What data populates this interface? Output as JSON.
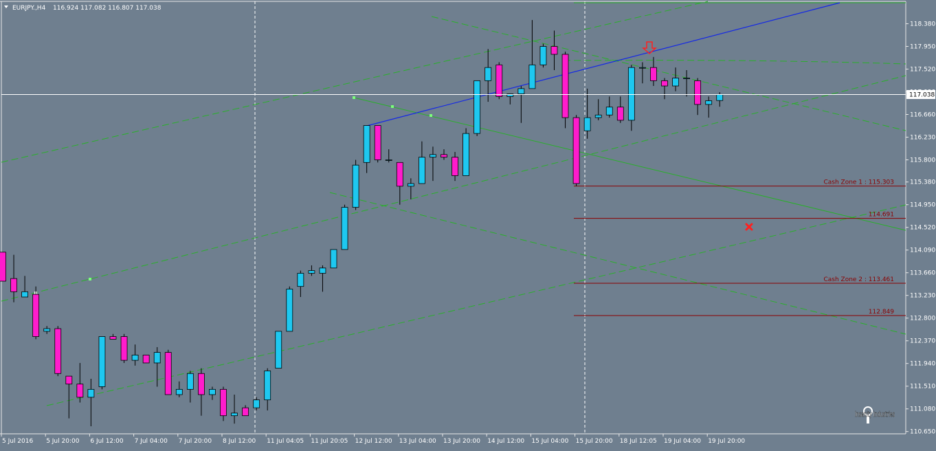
{
  "header": {
    "symbol": "EURJPY.,H4",
    "ohlc": "116.924 117.082 116.807 117.038"
  },
  "colors": {
    "background": "#6f7f8f",
    "bull_candle": "#1ec8f0",
    "bear_candle": "#ff1ccc",
    "channel_lines": "#29b029",
    "trend_line": "#1428e6",
    "zone_lines": "#8b0000",
    "arrow": "#ff2020"
  },
  "watermark": "Insanity Industries",
  "chart_data": {
    "type": "candlestick",
    "timeframe": "H4",
    "ylim": [
      110.57,
      118.72
    ],
    "price_axis_labels": [
      "118.380",
      "117.950",
      "117.520",
      "117.090",
      "116.660",
      "116.230",
      "115.800",
      "115.380",
      "114.950",
      "114.520",
      "114.090",
      "113.660",
      "113.230",
      "112.800",
      "112.370",
      "111.940",
      "111.510",
      "111.080",
      "110.650"
    ],
    "time_axis_labels": [
      "5 Jul 2016",
      "5 Jul 20:00",
      "6 Jul 12:00",
      "7 Jul 04:00",
      "7 Jul 20:00",
      "8 Jul 12:00",
      "11 Jul 04:05",
      "11 Jul 20:05",
      "12 Jul 12:00",
      "13 Jul 04:00",
      "13 Jul 20:00",
      "14 Jul 12:00",
      "15 Jul 04:00",
      "15 Jul 20:00",
      "18 Jul 12:05",
      "19 Jul 04:00",
      "19 Jul 20:00"
    ],
    "current_price": "117.038",
    "candles": [
      {
        "o": 114.05,
        "h": 114.05,
        "l": 113.5,
        "c": 113.5
      },
      {
        "o": 113.55,
        "h": 114.0,
        "l": 113.1,
        "c": 113.3
      },
      {
        "o": 113.2,
        "h": 113.6,
        "l": 113.2,
        "c": 113.3
      },
      {
        "o": 113.25,
        "h": 113.4,
        "l": 112.4,
        "c": 112.45
      },
      {
        "o": 112.55,
        "h": 112.65,
        "l": 112.5,
        "c": 112.6
      },
      {
        "o": 112.6,
        "h": 112.65,
        "l": 111.7,
        "c": 111.75
      },
      {
        "o": 111.7,
        "h": 111.7,
        "l": 110.9,
        "c": 111.55
      },
      {
        "o": 111.55,
        "h": 111.95,
        "l": 111.2,
        "c": 111.3
      },
      {
        "o": 111.3,
        "h": 111.65,
        "l": 110.75,
        "c": 111.45
      },
      {
        "o": 111.5,
        "h": 112.45,
        "l": 111.45,
        "c": 112.45
      },
      {
        "o": 112.45,
        "h": 112.5,
        "l": 112.4,
        "c": 112.4
      },
      {
        "o": 112.45,
        "h": 112.5,
        "l": 111.95,
        "c": 112.0
      },
      {
        "o": 112.0,
        "h": 112.3,
        "l": 111.9,
        "c": 112.1
      },
      {
        "o": 112.1,
        "h": 112.05,
        "l": 111.95,
        "c": 111.95
      },
      {
        "o": 111.95,
        "h": 112.25,
        "l": 111.5,
        "c": 112.15
      },
      {
        "o": 112.15,
        "h": 112.2,
        "l": 111.35,
        "c": 111.35
      },
      {
        "o": 111.35,
        "h": 111.6,
        "l": 111.3,
        "c": 111.45
      },
      {
        "o": 111.45,
        "h": 111.8,
        "l": 111.2,
        "c": 111.75
      },
      {
        "o": 111.75,
        "h": 111.85,
        "l": 110.95,
        "c": 111.35
      },
      {
        "o": 111.35,
        "h": 111.5,
        "l": 111.25,
        "c": 111.45
      },
      {
        "o": 111.45,
        "h": 111.5,
        "l": 110.85,
        "c": 110.95
      },
      {
        "o": 110.95,
        "h": 111.35,
        "l": 110.8,
        "c": 111.0
      },
      {
        "o": 111.1,
        "h": 111.15,
        "l": 110.95,
        "c": 110.95
      },
      {
        "o": 111.1,
        "h": 111.3,
        "l": 111.05,
        "c": 111.25
      },
      {
        "o": 111.25,
        "h": 111.85,
        "l": 111.05,
        "c": 111.8
      },
      {
        "o": 111.85,
        "h": 112.55,
        "l": 111.85,
        "c": 112.55
      },
      {
        "o": 112.55,
        "h": 113.4,
        "l": 112.55,
        "c": 113.35
      },
      {
        "o": 113.4,
        "h": 113.7,
        "l": 113.2,
        "c": 113.65
      },
      {
        "o": 113.65,
        "h": 113.8,
        "l": 113.6,
        "c": 113.7
      },
      {
        "o": 113.65,
        "h": 113.8,
        "l": 113.3,
        "c": 113.75
      },
      {
        "o": 113.75,
        "h": 114.1,
        "l": 113.75,
        "c": 114.1
      },
      {
        "o": 114.1,
        "h": 114.95,
        "l": 114.1,
        "c": 114.9
      },
      {
        "o": 114.9,
        "h": 115.8,
        "l": 114.85,
        "c": 115.7
      },
      {
        "o": 115.75,
        "h": 116.45,
        "l": 115.55,
        "c": 116.45
      },
      {
        "o": 116.45,
        "h": 116.45,
        "l": 115.75,
        "c": 115.8
      },
      {
        "o": 115.8,
        "h": 116.0,
        "l": 115.75,
        "c": 115.8
      },
      {
        "o": 115.75,
        "h": 115.75,
        "l": 114.95,
        "c": 115.3
      },
      {
        "o": 115.3,
        "h": 115.45,
        "l": 115.05,
        "c": 115.35
      },
      {
        "o": 115.35,
        "h": 116.15,
        "l": 115.35,
        "c": 115.85
      },
      {
        "o": 115.85,
        "h": 116.05,
        "l": 115.4,
        "c": 115.9
      },
      {
        "o": 115.9,
        "h": 116.0,
        "l": 115.8,
        "c": 115.85
      },
      {
        "o": 115.85,
        "h": 115.95,
        "l": 115.4,
        "c": 115.5
      },
      {
        "o": 115.5,
        "h": 116.4,
        "l": 115.5,
        "c": 116.3
      },
      {
        "o": 116.3,
        "h": 117.3,
        "l": 116.25,
        "c": 117.3
      },
      {
        "o": 117.3,
        "h": 117.9,
        "l": 116.9,
        "c": 117.55
      },
      {
        "o": 117.6,
        "h": 117.65,
        "l": 116.95,
        "c": 117.0
      },
      {
        "o": 117.0,
        "h": 117.05,
        "l": 116.85,
        "c": 117.05
      },
      {
        "o": 117.05,
        "h": 117.2,
        "l": 116.5,
        "c": 117.15
      },
      {
        "o": 117.15,
        "h": 118.45,
        "l": 117.15,
        "c": 117.6
      },
      {
        "o": 117.6,
        "h": 118.0,
        "l": 117.55,
        "c": 117.95
      },
      {
        "o": 117.95,
        "h": 118.25,
        "l": 117.5,
        "c": 117.8
      },
      {
        "o": 117.8,
        "h": 117.85,
        "l": 116.4,
        "c": 116.6
      },
      {
        "o": 116.6,
        "h": 116.65,
        "l": 115.3,
        "c": 115.35
      },
      {
        "o": 116.35,
        "h": 117.15,
        "l": 116.2,
        "c": 116.6
      },
      {
        "o": 116.6,
        "h": 116.95,
        "l": 116.55,
        "c": 116.65
      },
      {
        "o": 116.65,
        "h": 117.0,
        "l": 116.6,
        "c": 116.8
      },
      {
        "o": 116.8,
        "h": 117.0,
        "l": 116.5,
        "c": 116.55
      },
      {
        "o": 116.55,
        "h": 117.6,
        "l": 116.35,
        "c": 117.55
      },
      {
        "o": 117.55,
        "h": 117.65,
        "l": 117.25,
        "c": 117.55
      },
      {
        "o": 117.55,
        "h": 117.75,
        "l": 117.2,
        "c": 117.3
      },
      {
        "o": 117.3,
        "h": 117.35,
        "l": 116.95,
        "c": 117.2
      },
      {
        "o": 117.2,
        "h": 117.55,
        "l": 117.1,
        "c": 117.35
      },
      {
        "o": 117.35,
        "h": 117.5,
        "l": 117.0,
        "c": 117.35
      },
      {
        "o": 117.3,
        "h": 117.35,
        "l": 116.65,
        "c": 116.85
      },
      {
        "o": 116.85,
        "h": 117.0,
        "l": 116.6,
        "c": 116.92
      },
      {
        "o": 116.924,
        "h": 117.082,
        "l": 116.807,
        "c": 117.038
      }
    ],
    "levels": [
      {
        "label": "Cash Zone 1 : 115.303",
        "value": 115.303
      },
      {
        "label": "114.691",
        "value": 114.691
      },
      {
        "label": "Cash Zone 2 : 113.461",
        "value": 113.461
      },
      {
        "label": "112.849",
        "value": 112.849
      }
    ]
  }
}
